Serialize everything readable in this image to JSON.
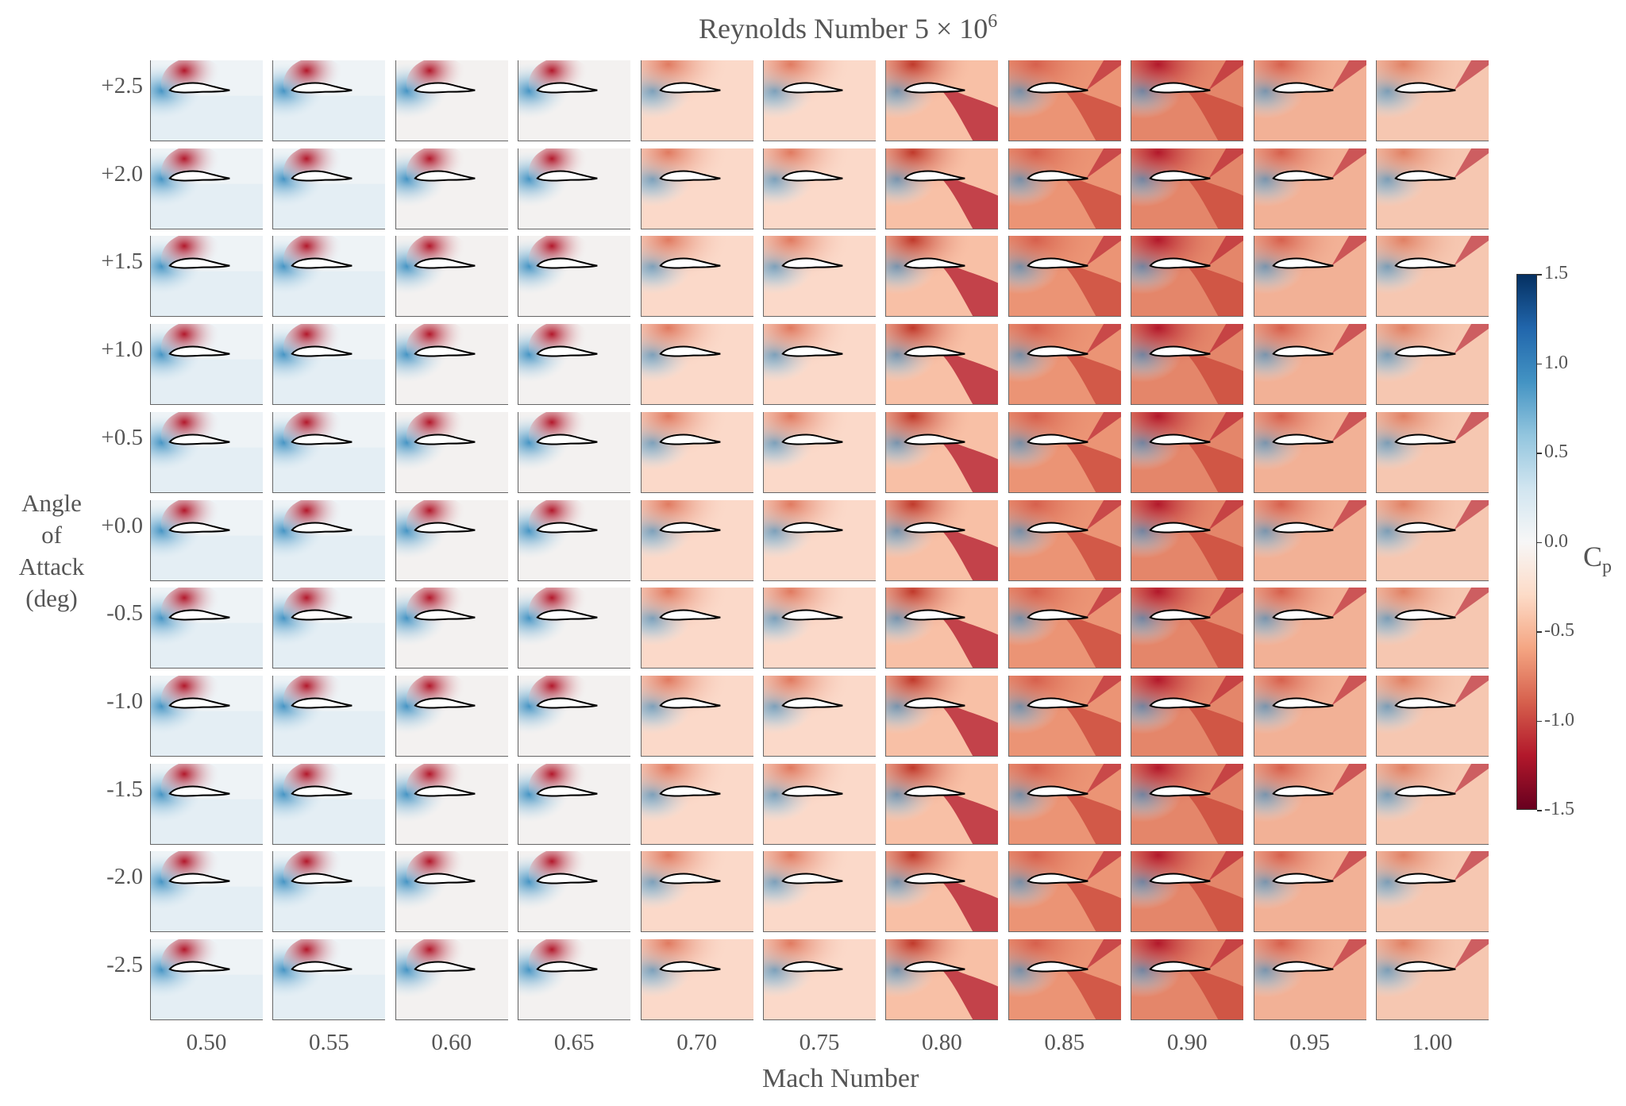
{
  "figure": {
    "title_prefix": "Reynolds Number 5",
    "title_times": "×",
    "title_base": "10",
    "title_exp": "6",
    "x_title": "Mach Number",
    "y_title": "Angle\nof\nAttack\n(deg)"
  },
  "grid": {
    "mach_labels": [
      "0.50",
      "0.55",
      "0.60",
      "0.65",
      "0.70",
      "0.75",
      "0.80",
      "0.85",
      "0.90",
      "0.95",
      "1.00"
    ],
    "aoa_labels": [
      "+2.5",
      "+2.0",
      "+1.5",
      "+1.0",
      "+0.5",
      "+0.0",
      "-0.5",
      "-1.0",
      "-1.5",
      "-2.0",
      "-2.5"
    ]
  },
  "colorbar": {
    "label_main": "C",
    "label_sub": "p",
    "range": [
      -1.5,
      1.5
    ],
    "ticks": [
      "1.5",
      "1.0",
      "0.5",
      "0.0",
      "-0.5",
      "-1.0",
      "-1.5"
    ],
    "colormap": [
      "#67001f",
      "#b2182b",
      "#d6604d",
      "#f4a582",
      "#fddbc7",
      "#f7f7f7",
      "#d1e5f0",
      "#92c5de",
      "#4393c3",
      "#2166ac",
      "#053061"
    ]
  }
}
